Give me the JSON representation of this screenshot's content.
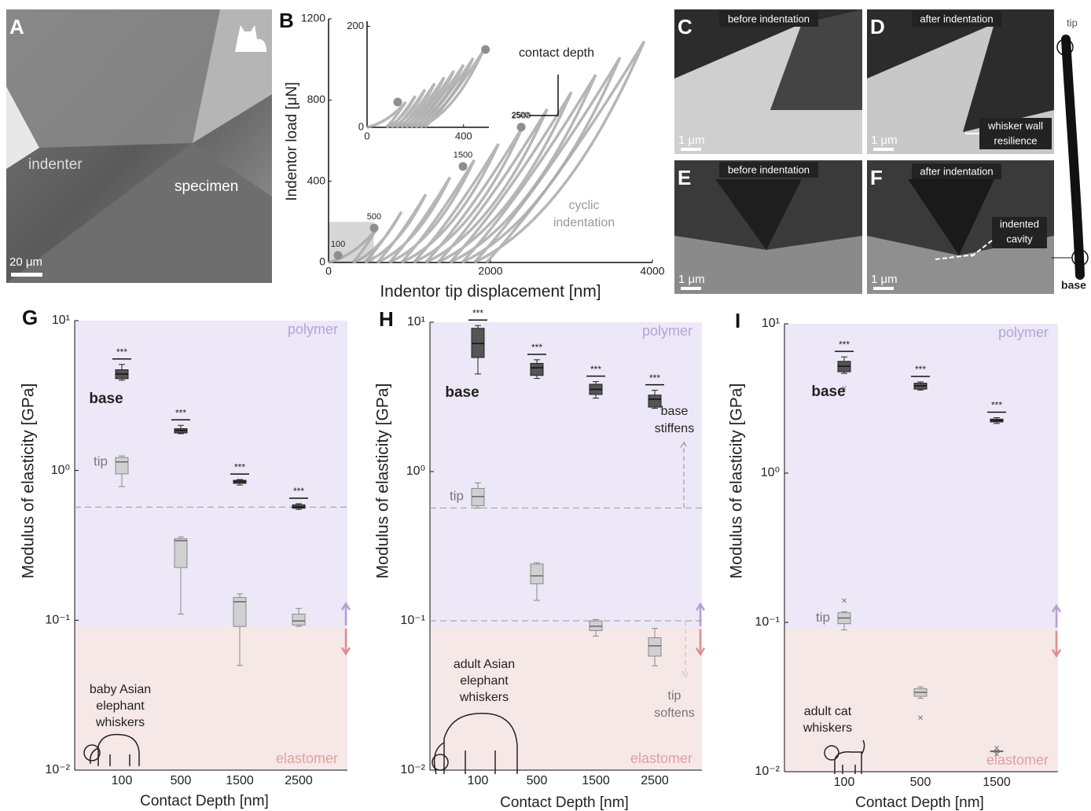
{
  "panels": {
    "A": {
      "letter": "A",
      "labels": [
        "indenter",
        "specimen"
      ],
      "scale_bar": "20 μm"
    },
    "C": {
      "letter": "C",
      "caption": "before indentation",
      "scale_bar": "1 μm"
    },
    "D": {
      "letter": "D",
      "caption": "after indentation",
      "scale_bar": "1 μm",
      "note": [
        "whisker wall",
        "resilience"
      ]
    },
    "E": {
      "letter": "E",
      "caption": "before indentation",
      "scale_bar": "1 μm"
    },
    "F": {
      "letter": "F",
      "caption": "after indentation",
      "scale_bar": "1 μm",
      "note": [
        "indented",
        "cavity"
      ]
    },
    "whisker": {
      "tip": "tip",
      "base": "base"
    }
  },
  "chart_data": [
    {
      "type": "cyclic",
      "letter": "B",
      "xlabel": "Indentor tip displacement [nm]",
      "ylabel": "Indentor load [μN]",
      "color": "#a9a9a9",
      "xlim": [
        0,
        4000
      ],
      "ylim": [
        0,
        1200
      ],
      "xticks": [
        0,
        2000,
        4000
      ],
      "yticks": [
        0,
        400,
        800,
        1200
      ],
      "zoom_region": {
        "x": [
          0,
          560
        ],
        "y": [
          0,
          200
        ]
      },
      "series": [
        {
          "x": [
            0,
            600,
            300
          ],
          "y": [
            0,
            170,
            0
          ]
        },
        {
          "x": [
            300,
            900,
            450
          ],
          "y": [
            0,
            250,
            0
          ]
        },
        {
          "x": [
            450,
            1200,
            600
          ],
          "y": [
            0,
            335,
            0
          ]
        },
        {
          "x": [
            600,
            1500,
            750
          ],
          "y": [
            0,
            420,
            0
          ]
        },
        {
          "x": [
            750,
            1800,
            900
          ],
          "y": [
            0,
            505,
            0
          ]
        },
        {
          "x": [
            900,
            2100,
            1050
          ],
          "y": [
            0,
            585,
            0
          ]
        },
        {
          "x": [
            1050,
            2400,
            1200
          ],
          "y": [
            0,
            670,
            0
          ]
        },
        {
          "x": [
            1200,
            2700,
            1350
          ],
          "y": [
            0,
            755,
            0
          ]
        },
        {
          "x": [
            1350,
            3000,
            1500
          ],
          "y": [
            0,
            840,
            0
          ]
        },
        {
          "x": [
            1500,
            3300,
            1650
          ],
          "y": [
            0,
            925,
            0
          ]
        },
        {
          "x": [
            1650,
            3600,
            1800
          ],
          "y": [
            0,
            1010,
            0
          ]
        },
        {
          "x": [
            1800,
            3900,
            1950
          ],
          "y": [
            0,
            1090,
            0
          ]
        }
      ],
      "points": [
        {
          "label": "100",
          "x": 117,
          "y": 35
        },
        {
          "label": "500",
          "x": 563,
          "y": 170
        },
        {
          "label": "1500",
          "x": 1660,
          "y": 473
        },
        {
          "label": "2500",
          "x": 2379,
          "y": 667
        }
      ],
      "annotations": {
        "contact_depth": "contact depth",
        "depth_label": "2500",
        "cyclic": [
          "cyclic",
          "indentation"
        ]
      }
    },
    {
      "type": "cyclic",
      "color": "#a9a9a9",
      "xlim": [
        0,
        505
      ],
      "ylim": [
        0,
        210
      ],
      "xticks": [
        0,
        400
      ],
      "yticks": [
        0,
        200
      ],
      "series": [
        {
          "x": [
            0,
            160,
            80
          ],
          "y": [
            0,
            50,
            0
          ]
        },
        {
          "x": [
            80,
            200,
            100
          ],
          "y": [
            0,
            62,
            0
          ]
        },
        {
          "x": [
            100,
            240,
            120
          ],
          "y": [
            0,
            75,
            0
          ]
        },
        {
          "x": [
            120,
            280,
            140
          ],
          "y": [
            0,
            87,
            0
          ]
        },
        {
          "x": [
            140,
            320,
            160
          ],
          "y": [
            0,
            99,
            0
          ]
        },
        {
          "x": [
            160,
            360,
            180
          ],
          "y": [
            0,
            112,
            0
          ]
        },
        {
          "x": [
            180,
            400,
            200
          ],
          "y": [
            0,
            124,
            0
          ]
        },
        {
          "x": [
            200,
            440,
            220
          ],
          "y": [
            0,
            137,
            0
          ]
        },
        {
          "x": [
            220,
            480,
            240
          ],
          "y": [
            0,
            150,
            0
          ]
        }
      ],
      "points": [
        {
          "x": 127,
          "y": 50
        },
        {
          "x": 491,
          "y": 154
        }
      ]
    },
    {
      "type": "box",
      "letter": "G",
      "xlabel": "Contact Depth [nm]",
      "ylabel": "Modulus of elasticity [GPa]",
      "log_y": true,
      "categories": [
        "100",
        "500",
        "1500",
        "2500"
      ],
      "ylim": [
        0.01,
        10
      ],
      "yticks": [
        {
          "value": 0.01,
          "label": "10⁻²"
        },
        {
          "value": 0.1,
          "label": "10⁻¹"
        },
        {
          "value": 1,
          "label": "10⁰"
        },
        {
          "value": 10,
          "label": "10¹"
        }
      ],
      "region_boundary": 0.09,
      "regions": {
        "upper": "polymer",
        "lower": "elastomer"
      },
      "reference_lines": [
        0.57
      ],
      "species": [
        "baby Asian",
        "elephant",
        "whiskers"
      ],
      "series": [
        {
          "name": "base",
          "color": "#555555",
          "boxes": [
            [
              4.0,
              4.1,
              4.4,
              4.7,
              5.1
            ],
            [
              1.76,
              1.78,
              1.85,
              1.9,
              2.0
            ],
            [
              0.8,
              0.82,
              0.84,
              0.86,
              0.87
            ],
            [
              0.55,
              0.56,
              0.57,
              0.59,
              0.6
            ]
          ],
          "significance": [
            "***",
            "***",
            "***",
            "***"
          ]
        },
        {
          "name": "tip",
          "color": "#d0d0d0",
          "boxes": [
            [
              0.78,
              0.95,
              1.14,
              1.22,
              1.25
            ],
            [
              0.11,
              0.225,
              0.34,
              0.35,
              0.36
            ],
            [
              0.05,
              0.091,
              0.133,
              0.142,
              0.15
            ],
            [
              0.091,
              0.093,
              0.099,
              0.11,
              0.12
            ]
          ]
        }
      ]
    },
    {
      "type": "box",
      "letter": "H",
      "xlabel": "Contact Depth [nm]",
      "ylabel": "Modulus of elasticity [GPa]",
      "log_y": true,
      "categories": [
        "100",
        "500",
        "1500",
        "2500"
      ],
      "ylim": [
        0.01,
        10
      ],
      "yticks": [
        {
          "value": 0.01,
          "label": "10⁻²"
        },
        {
          "value": 0.1,
          "label": "10⁻¹"
        },
        {
          "value": 1,
          "label": "10⁰"
        },
        {
          "value": 10,
          "label": "10¹"
        }
      ],
      "region_boundary": 0.09,
      "regions": {
        "upper": "polymer",
        "lower": "elastomer"
      },
      "reference_lines": [
        0.57,
        0.1
      ],
      "species": [
        "adult Asian",
        "elephant",
        "whiskers"
      ],
      "notes": [
        [
          "base",
          "stiffens"
        ],
        [
          "tip",
          "softens"
        ]
      ],
      "series": [
        {
          "name": "base",
          "color": "#555555",
          "boxes": [
            [
              4.5,
              5.8,
              7.2,
              9.1,
              9.5
            ],
            [
              4.2,
              4.4,
              4.95,
              5.3,
              5.6
            ],
            [
              3.1,
              3.28,
              3.55,
              3.84,
              4.0
            ],
            [
              2.65,
              2.7,
              3.05,
              3.25,
              3.5
            ]
          ],
          "significance": [
            "***",
            "***",
            "***",
            "***"
          ]
        },
        {
          "name": "tip",
          "color": "#d0d0d0",
          "boxes": [
            [
              0.57,
              0.59,
              0.68,
              0.77,
              0.84
            ],
            [
              0.137,
              0.177,
              0.2,
              0.24,
              0.245
            ],
            [
              0.079,
              0.086,
              0.092,
              0.1,
              0.102
            ],
            [
              0.05,
              0.058,
              0.068,
              0.077,
              0.089
            ]
          ]
        }
      ]
    },
    {
      "type": "box",
      "letter": "I",
      "xlabel": "Contact Depth [nm]",
      "ylabel": "Modulus of elasticity [GPa]",
      "log_y": true,
      "categories": [
        "100",
        "500",
        "1500"
      ],
      "ylim": [
        0.01,
        10
      ],
      "yticks": [
        {
          "value": 0.01,
          "label": "10⁻²"
        },
        {
          "value": 0.1,
          "label": "10⁻¹"
        },
        {
          "value": 1,
          "label": "10⁰"
        },
        {
          "value": 10,
          "label": "10¹"
        }
      ],
      "region_boundary": 0.09,
      "regions": {
        "upper": "polymer",
        "lower": "elastomer"
      },
      "species": [
        "adult cat",
        "whiskers"
      ],
      "series": [
        {
          "name": "base",
          "color": "#555555",
          "boxes": [
            [
              4.65,
              4.77,
              5.2,
              5.6,
              6.0
            ],
            [
              3.6,
              3.65,
              3.84,
              4.0,
              4.08
            ],
            [
              2.15,
              2.2,
              2.25,
              2.3,
              2.35
            ]
          ],
          "outliers": [
            [
              3.7
            ],
            [],
            []
          ],
          "significance": [
            "***",
            "***",
            "***"
          ]
        },
        {
          "name": "tip",
          "color": "#d0d0d0",
          "boxes": [
            [
              0.089,
              0.098,
              0.107,
              0.116,
              0.118
            ],
            [
              0.031,
              0.032,
              0.034,
              0.036,
              0.037
            ],
            [
              0.0135,
              0.0136,
              0.0137,
              0.0138,
              0.0139
            ]
          ],
          "outliers": [
            [
              0.14
            ],
            [
              0.023
            ],
            [
              0.0144,
              0.0131
            ]
          ]
        }
      ]
    }
  ]
}
